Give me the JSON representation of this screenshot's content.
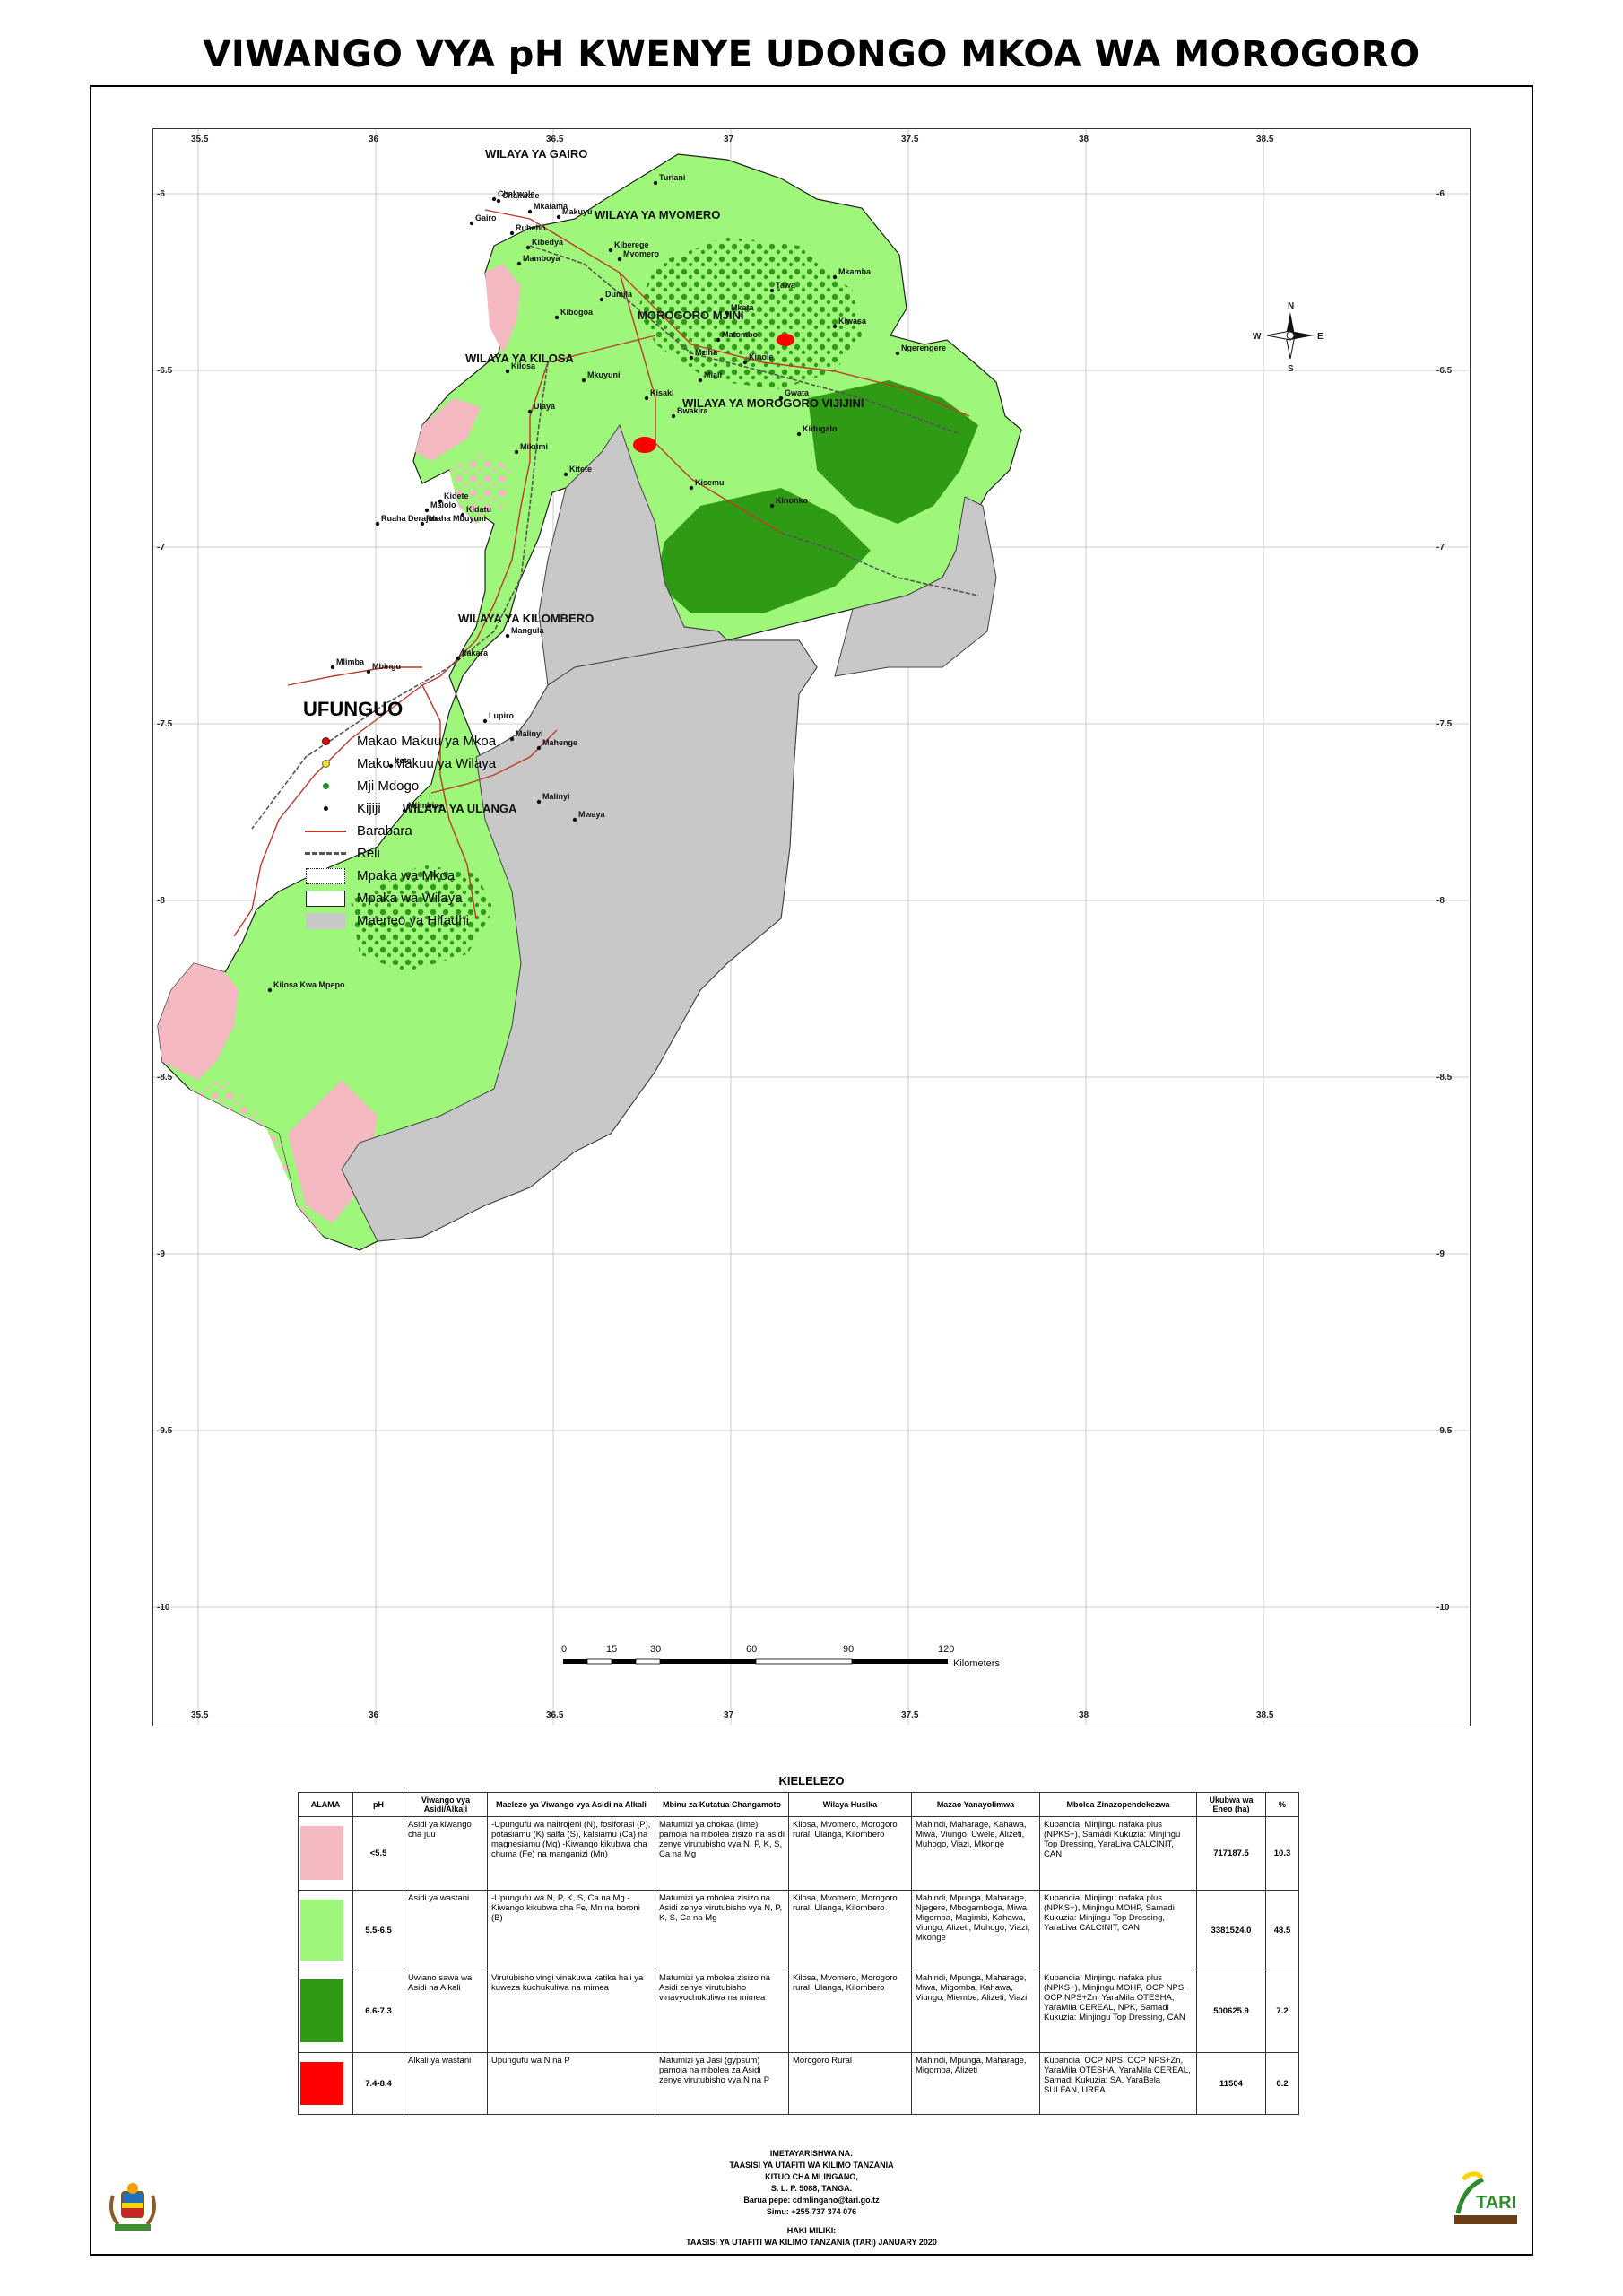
{
  "title": "VIWANGO VYA pH KWENYE UDONGO MKOA WA MOROGORO",
  "map": {
    "lon_ticks": [
      "35.5",
      "36",
      "36.5",
      "37",
      "37.5",
      "38",
      "38.5"
    ],
    "lat_ticks": [
      "-6",
      "-6.5",
      "-7",
      "-7.5",
      "-8",
      "-8.5",
      "-9",
      "-9.5",
      "-10"
    ],
    "districts": [
      "WILAYA YA GAIRO",
      "WILAYA YA MVOMERO",
      "MOROGORO MJINI",
      "WILAYA YA KILOSA",
      "WILAYA YA MOROGORO VIJIJINI",
      "WILAYA YA KILOMBERO",
      "WILAYA YA ULANGA"
    ],
    "places": [
      "Makuyu",
      "Chakwale",
      "Mkalama",
      "Gairo",
      "Rubeho",
      "Chakwale",
      "Kibedya",
      "Mamboya",
      "Dumila",
      "Turiani",
      "Mvomero",
      "Kiwasa",
      "Kisaki",
      "Ngerengere",
      "Kilosa",
      "Mikumi",
      "Ulaya",
      "Kitete",
      "Kidatu",
      "Mangula",
      "Ifakara",
      "Mlimba",
      "Lupiro",
      "Malinyi",
      "Mahenge",
      "Mwaya",
      "Itete",
      "Mtimbira",
      "Kilosa Kwa Mpepo",
      "Malolo",
      "Ruaha Derajah",
      "Ruaha Mbuyuni",
      "Kibogoa",
      "Mkata",
      "Mziha",
      "Matombo",
      "Mlali",
      "Tawa",
      "Kinole",
      "Gwata",
      "Bwakira",
      "Kidugalo",
      "Mkuyuni",
      "Kisemu",
      "Kinonko",
      "Mbingu",
      "Kidete",
      "Mkamba",
      "Malinyi",
      "Kiberege"
    ],
    "compass": [
      "N",
      "S",
      "E",
      "W"
    ],
    "colors": {
      "ph_lt_5_5": "#f4b9c1",
      "ph_5_5_6_5": "#9ef77a",
      "ph_6_6_7_3": "#2f9a14",
      "ph_7_4_8_4": "#ff0000",
      "protected": "#c8c8c8",
      "road": "#c0392b"
    }
  },
  "legend": {
    "title": "UFUNGUO",
    "items": [
      {
        "label": "Makao Makuu ya Mkoa",
        "icon": "red-dot"
      },
      {
        "label": "Mako Makuu ya Wilaya",
        "icon": "yellow-dot"
      },
      {
        "label": "Mji Mdogo",
        "icon": "green-dot"
      },
      {
        "label": "Kijiji",
        "icon": "black-dot"
      },
      {
        "label": "Barabara",
        "icon": "red-line"
      },
      {
        "label": "Reli",
        "icon": "rail-line"
      },
      {
        "label": "Mpaka wa Mkoa",
        "icon": "dotted-box"
      },
      {
        "label": "Mpaka wa Wilaya",
        "icon": "solid-box"
      },
      {
        "label": "Maeneo ya Hifadhi",
        "icon": "grey-box"
      }
    ]
  },
  "scale": {
    "labels": [
      "0",
      "15",
      "30",
      "60",
      "90",
      "120"
    ],
    "unit": "Kilometers"
  },
  "key": {
    "title": "KIELELEZO",
    "headers": [
      "ALAMA",
      "pH",
      "Viwango vya Asidi/Alkali",
      "Maelezo ya Viwango vya Asidi na Alkali",
      "Mbinu za Kutatua Changamoto",
      "Wilaya Husika",
      "Mazao Yanayolimwa",
      "Mbolea Zinazopendekezwa",
      "Ukubwa wa Eneo (ha)",
      "%"
    ],
    "rows": [
      {
        "color": "#f4b9c1",
        "ph": "<5.5",
        "level": "Asidi ya kiwango cha juu",
        "desc": "-Upungufu wa naitrojeni (N), fosiforasi (P), potasiamu (K) salfa (S), kalsiamu (Ca) na magnesiamu (Mg) -Kiwango kikubwa cha chuma (Fe) na manganizi (Mn)",
        "method": "Matumizi ya chokaa (lime) pamoja na mbolea zisizo na asidi zenye virutubisho vya N, P, K, S, Ca na Mg",
        "districts": "Kilosa, Mvomero, Morogoro rural, Ulanga, Kilombero",
        "crops": "Mahindi, Maharage, Kahawa, Miwa, Viungo, Uwele, Alizeti, Muhogo, Viazi, Mkonge",
        "fertilizer": "Kupandia: Minjingu nafaka plus (NPKS+), Samadi  Kukuzia: Minjingu Top Dressing, YaraLiva CALCINIT, CAN",
        "area": "717187.5",
        "pct": "10.3"
      },
      {
        "color": "#9ef77a",
        "ph": "5.5-6.5",
        "level": "Asidi ya wastani",
        "desc": "-Upungufu wa N, P, K, S, Ca na Mg -Kiwango kikubwa cha Fe, Mn na boroni (B)",
        "method": "Matumizi ya mbolea zisizo na Asidi zenye virutubisho vya N, P, K, S, Ca na Mg",
        "districts": "Kilosa, Mvomero, Morogoro rural, Ulanga, Kilombero",
        "crops": "Mahindi, Mpunga, Maharage, Njegere, Mbogamboga, Miwa, Migomba, Magimbi, Kahawa, Viungo, Alizeti, Muhogo, Viazi, Mkonge",
        "fertilizer": "Kupandia: Minjingu nafaka plus (NPKS+), Minjingu MOHP, Samadi  Kukuzia: Minjingu Top Dressing, YaraLiva CALCINIT, CAN",
        "area": "3381524.0",
        "pct": "48.5"
      },
      {
        "color": "#2f9a14",
        "ph": "6.6-7.3",
        "level": "Uwiano sawa wa Asidi na Alkali",
        "desc": "Virutubisho vingi vinakuwa katika hali ya kuweza kuchukuliwa na mimea",
        "method": "Matumizi ya mbolea zisizo na Asidi zenye virutubisho vinavyochukuliwa na mimea",
        "districts": "Kilosa, Mvomero, Morogoro rural, Ulanga, Kilombero",
        "crops": "Mahindi, Mpunga, Maharage, Miwa, Migomba, Kahawa, Viungo, Miembe, Alizeti, Viazi",
        "fertilizer": "Kupandia: Minjingu nafaka plus (NPKS+), Minjingu MOHP, OCP NPS, OCP NPS+Zn, YaraMila OTESHA, YaraMila CEREAL, NPK, Samadi  Kukuzia: Minjingu Top Dressing, CAN",
        "area": "500625.9",
        "pct": "7.2"
      },
      {
        "color": "#ff0000",
        "ph": "7.4-8.4",
        "level": "Alkali ya wastani",
        "desc": "Upungufu wa N na P",
        "method": "Matumizi ya Jasi (gypsum) pamoja na mbolea za Asidi zenye virutubisho vya N na P",
        "districts": "Morogoro Rural",
        "crops": "Mahindi, Mpunga, Maharage, Migomba, Alizeti",
        "fertilizer": "Kupandia: OCP NPS, OCP NPS+Zn, YaraMila OTESHA, YaraMila CEREAL, Samadi  Kukuzia: SA, YaraBela SULFAN, UREA",
        "area": "11504",
        "pct": "0.2"
      }
    ]
  },
  "credits": {
    "line1": "IMETAYARISHWA NA:",
    "line2": "TAASISI YA UTAFITI WA KILIMO TANZANIA",
    "line3": "KITUO CHA MLINGANO,",
    "line4": "S. L. P. 5088, TANGA.",
    "line5": "Barua pepe: cdmlingano@tari.go.tz",
    "line6": "Simu: +255 737 374 076",
    "line7": "HAKI MILIKI:",
    "line8": "TAASISI YA UTAFITI WA KILIMO TANZANIA (TARI) JANUARY 2020"
  },
  "logo_text": "TARI"
}
